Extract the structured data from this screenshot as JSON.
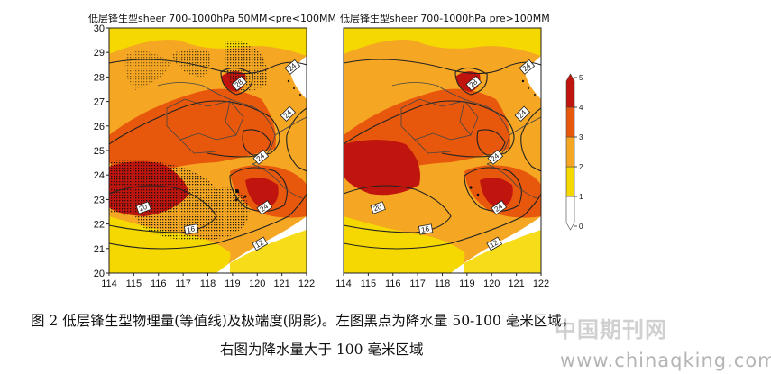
{
  "chart_data": [
    {
      "type": "heatmap",
      "title": "低层锋生型sheer 700-1000hPa 50MM<pre<100MM",
      "xlim": [
        114,
        122
      ],
      "ylim": [
        20,
        30
      ],
      "x_ticks": [
        114,
        115,
        116,
        117,
        118,
        119,
        120,
        121,
        122
      ],
      "y_ticks": [
        20,
        21,
        22,
        23,
        24,
        25,
        26,
        27,
        28,
        29,
        30
      ],
      "contour_labels": [
        "12",
        "16",
        "20",
        "24",
        "28"
      ],
      "stippled": true
    },
    {
      "type": "heatmap",
      "title": "低层锋生型sheer 700-1000hPa pre>100MM",
      "xlim": [
        114,
        122
      ],
      "ylim": [
        20,
        30
      ],
      "x_ticks": [
        114,
        115,
        116,
        117,
        118,
        119,
        120,
        121,
        122
      ],
      "y_ticks": [
        20,
        21,
        22,
        23,
        24,
        25,
        26,
        27,
        28,
        29,
        30
      ],
      "contour_labels": [
        "12",
        "16",
        "20",
        "24",
        "28"
      ],
      "stippled": false
    }
  ],
  "colorbar": {
    "ticks": [
      "0",
      "1",
      "2",
      "3",
      "4",
      "5"
    ],
    "colors": [
      "#ffffff",
      "#f5d800",
      "#f5a623",
      "#e8580c",
      "#c0140e"
    ]
  },
  "caption": {
    "line1": "图 2 低层锋生型物理量(等值线)及极端度(阴影)。左图黑点为降水量 50-100 毫米区域，",
    "line2": "右图为降水量大于 100 毫米区域"
  },
  "watermark": {
    "cn": "中国期刊网",
    "url": "www.chinaqking.com"
  }
}
